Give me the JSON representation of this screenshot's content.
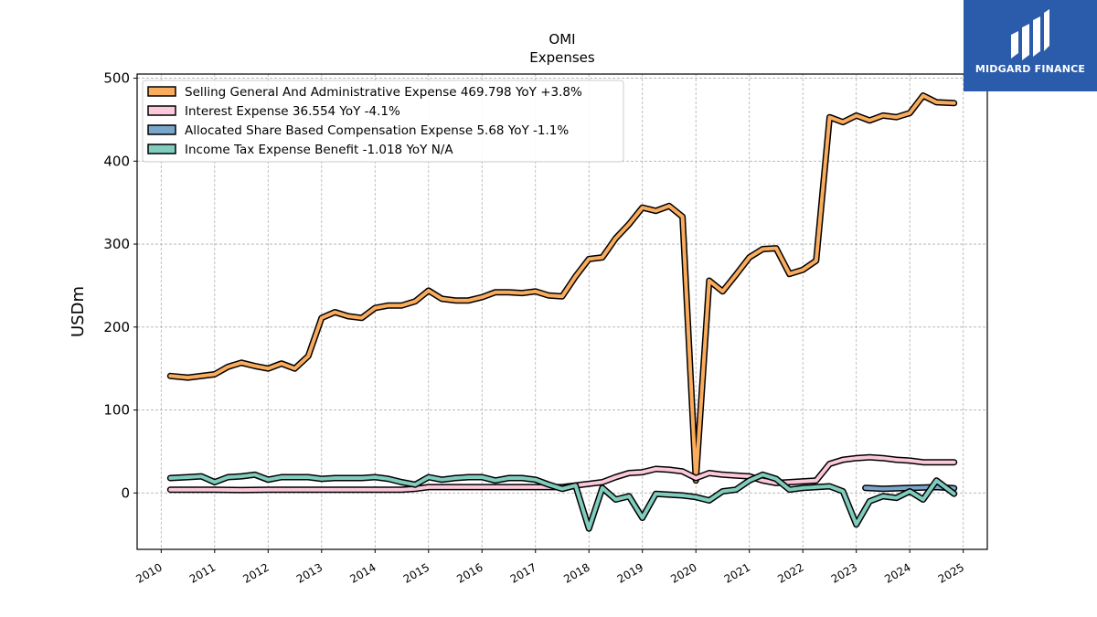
{
  "brand": {
    "name": "MIDGARD FINANCE",
    "bg_color": "#2b5cab"
  },
  "chart_data": {
    "type": "line",
    "title": "OMI",
    "subtitle": "Expenses",
    "ylabel": "USDm",
    "xlabel": "",
    "xlim": [
      2009.55,
      2025.45
    ],
    "ylim": [
      -68,
      505
    ],
    "yticks": [
      0,
      100,
      200,
      300,
      400,
      500
    ],
    "xticks": [
      2010,
      2011,
      2012,
      2013,
      2014,
      2015,
      2016,
      2017,
      2018,
      2019,
      2020,
      2021,
      2022,
      2023,
      2024,
      2025
    ],
    "grid": true,
    "legend_position": "top-left",
    "series": [
      {
        "name": "Selling General And Administrative Expense",
        "legend_label": "Selling General And Administrative Expense  469.798 YoY +3.8%",
        "color": "#f9ac5d",
        "x": [
          2010.17,
          2010.5,
          2011.0,
          2011.25,
          2011.5,
          2011.75,
          2012.0,
          2012.25,
          2012.5,
          2012.75,
          2013.0,
          2013.25,
          2013.5,
          2013.75,
          2014.0,
          2014.25,
          2014.5,
          2014.75,
          2015.0,
          2015.25,
          2015.5,
          2015.75,
          2016.0,
          2016.25,
          2016.5,
          2016.75,
          2017.0,
          2017.25,
          2017.5,
          2017.75,
          2018.0,
          2018.25,
          2018.5,
          2018.75,
          2019.0,
          2019.25,
          2019.5,
          2019.75,
          2020.0,
          2020.25,
          2020.5,
          2020.75,
          2021.0,
          2021.25,
          2021.5,
          2021.75,
          2022.0,
          2022.25,
          2022.5,
          2022.75,
          2023.0,
          2023.25,
          2023.5,
          2023.75,
          2024.0,
          2024.25,
          2024.5,
          2024.83
        ],
        "y": [
          141,
          139,
          143,
          152,
          157,
          153,
          150,
          156,
          150,
          165,
          211,
          218,
          213,
          211,
          223,
          226,
          226,
          231,
          244,
          234,
          232,
          232,
          236,
          242,
          242,
          241,
          243,
          238,
          237,
          261,
          282,
          284,
          307,
          324,
          344,
          340,
          346,
          333,
          15,
          256,
          243,
          263,
          284,
          294,
          295,
          264,
          269,
          280,
          453,
          447,
          455,
          449,
          455,
          453,
          458,
          479,
          471,
          470
        ]
      },
      {
        "name": "Interest Expense",
        "legend_label": "Interest Expense  36.554 YoY -4.1%",
        "color": "#fbc8dc",
        "x": [
          2010.17,
          2010.5,
          2011.0,
          2011.5,
          2012.0,
          2012.5,
          2013.0,
          2013.5,
          2014.0,
          2014.5,
          2014.75,
          2015.0,
          2015.5,
          2016.0,
          2016.5,
          2017.0,
          2017.5,
          2017.75,
          2018.0,
          2018.25,
          2018.5,
          2018.75,
          2019.0,
          2019.25,
          2019.5,
          2019.75,
          2020.0,
          2020.25,
          2020.5,
          2020.75,
          2021.0,
          2021.25,
          2021.5,
          2021.75,
          2022.0,
          2022.25,
          2022.5,
          2022.75,
          2023.0,
          2023.25,
          2023.5,
          2023.75,
          2024.0,
          2024.25,
          2024.5,
          2024.83
        ],
        "y": [
          4,
          4,
          4,
          3.5,
          4,
          4,
          4,
          4,
          4,
          4,
          5,
          7,
          7,
          7,
          7,
          7,
          7,
          9,
          11,
          13,
          19,
          24,
          25,
          29,
          28,
          26,
          18,
          24,
          22,
          21,
          20,
          15,
          12,
          13,
          14,
          15,
          35,
          40,
          42,
          43,
          42,
          40,
          39,
          37,
          37,
          37
        ]
      },
      {
        "name": "Allocated Share Based Compensation Expense",
        "legend_label": "Allocated Share Based Compensation Expense  5.68 YoY -1.1%",
        "color": "#7aa6cc",
        "x": [
          2023.17,
          2023.5,
          2023.75,
          2024.0,
          2024.25,
          2024.5,
          2024.83
        ],
        "y": [
          6,
          5,
          5.5,
          6,
          6.5,
          7,
          5.7
        ]
      },
      {
        "name": "Income Tax Expense Benefit",
        "legend_label": "Income Tax Expense Benefit  -1.018 YoY N/A",
        "color": "#80ccbd",
        "x": [
          2010.17,
          2010.5,
          2010.75,
          2011.0,
          2011.25,
          2011.5,
          2011.75,
          2012.0,
          2012.25,
          2012.5,
          2012.75,
          2013.0,
          2013.25,
          2013.5,
          2013.75,
          2014.0,
          2014.25,
          2014.5,
          2014.75,
          2015.0,
          2015.25,
          2015.5,
          2015.75,
          2016.0,
          2016.25,
          2016.5,
          2016.75,
          2017.0,
          2017.25,
          2017.5,
          2017.75,
          2018.0,
          2018.25,
          2018.5,
          2018.75,
          2019.0,
          2019.25,
          2019.5,
          2019.75,
          2020.0,
          2020.25,
          2020.5,
          2020.75,
          2021.0,
          2021.25,
          2021.5,
          2021.75,
          2022.0,
          2022.25,
          2022.5,
          2022.75,
          2023.0,
          2023.25,
          2023.5,
          2023.75,
          2024.0,
          2024.25,
          2024.5,
          2024.83
        ],
        "y": [
          18,
          19,
          20,
          13,
          19,
          20,
          22,
          16,
          19,
          19,
          19,
          17,
          18,
          18,
          18,
          19,
          17,
          13,
          10,
          19,
          16,
          18,
          19,
          19,
          15,
          18,
          18,
          16,
          10,
          5,
          9,
          -43,
          6,
          -8,
          -4,
          -30,
          -1,
          -2,
          -3,
          -5,
          -9,
          2,
          4,
          15,
          22,
          17,
          4,
          6,
          7,
          8,
          2,
          -38,
          -10,
          -4,
          -6,
          2,
          -8,
          15,
          -1
        ]
      }
    ]
  }
}
